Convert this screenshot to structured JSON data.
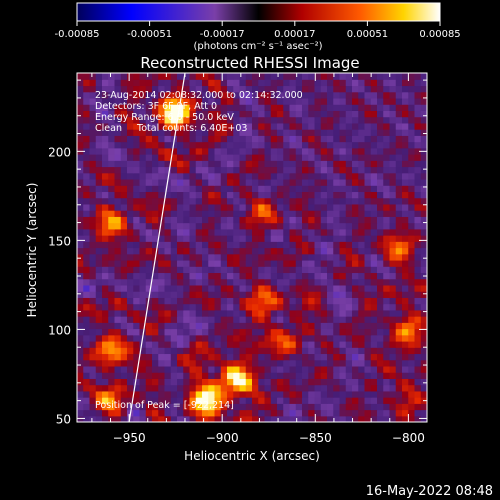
{
  "colorbar": {
    "ticks": [
      "-0.00085",
      "-0.00051",
      "-0.00017",
      "0.00017",
      "0.00051",
      "0.00085"
    ],
    "unit_label": "(photons cm⁻² s⁻¹ asec⁻²)",
    "range": [
      -0.00085,
      0.00085
    ]
  },
  "annotations": {
    "line1": "23-Aug-2014 02:08:32.000 to 02:14:32.000",
    "line2": "Detectors: 3F 6F 9F, Att 0",
    "line3": "Energy Range: 6.0 - 50.0 keV",
    "line4": "Clean     Total counts: 6.40E+03",
    "peak": "Position of Peak = [-922,214]"
  },
  "footer": {
    "timestamp": "16-May-2022 08:48"
  },
  "colors": {
    "background": "#000000",
    "axes": "#ffffff",
    "limb_line": "#ffffff",
    "colormap": [
      "#000000",
      "#0000ff",
      "#6d3aa8",
      "#cc0000",
      "#ff6600",
      "#ffdd00",
      "#ffffff"
    ]
  },
  "chart_data": {
    "type": "heatmap",
    "title": "Reconstructed RHESSI Image",
    "xlabel": "Heliocentric X (arcsec)",
    "ylabel": "Heliocentric Y (arcsec)",
    "xlim": [
      -978,
      -790
    ],
    "ylim": [
      48,
      244
    ],
    "xticks": [
      -950,
      -900,
      -850,
      -800
    ],
    "yticks": [
      50,
      100,
      150,
      200
    ],
    "xtick_labels": [
      "−950",
      "−900",
      "−850",
      "−800"
    ],
    "ytick_labels": [
      "50",
      "100",
      "150",
      "200"
    ],
    "peak_position": [
      -922,
      214
    ],
    "bright_sources": [
      {
        "x": -925,
        "y": 222,
        "value": 0.00085
      },
      {
        "x": -893,
        "y": 72,
        "value": 0.0007
      },
      {
        "x": -908,
        "y": 60,
        "value": 0.0007
      },
      {
        "x": -960,
        "y": 160,
        "value": 0.0005
      },
      {
        "x": -960,
        "y": 90,
        "value": 0.0005
      },
      {
        "x": -800,
        "y": 100,
        "value": 0.0005
      },
      {
        "x": -805,
        "y": 145,
        "value": 0.0004
      },
      {
        "x": -960,
        "y": 60,
        "value": 0.0004
      },
      {
        "x": -878,
        "y": 115,
        "value": 0.0004
      },
      {
        "x": -865,
        "y": 95,
        "value": 0.0003
      },
      {
        "x": -800,
        "y": 60,
        "value": 0.0003
      },
      {
        "x": -878,
        "y": 165,
        "value": 0.0003
      }
    ],
    "limb_line": [
      [
        -950,
        48
      ],
      [
        -920,
        244
      ]
    ]
  }
}
